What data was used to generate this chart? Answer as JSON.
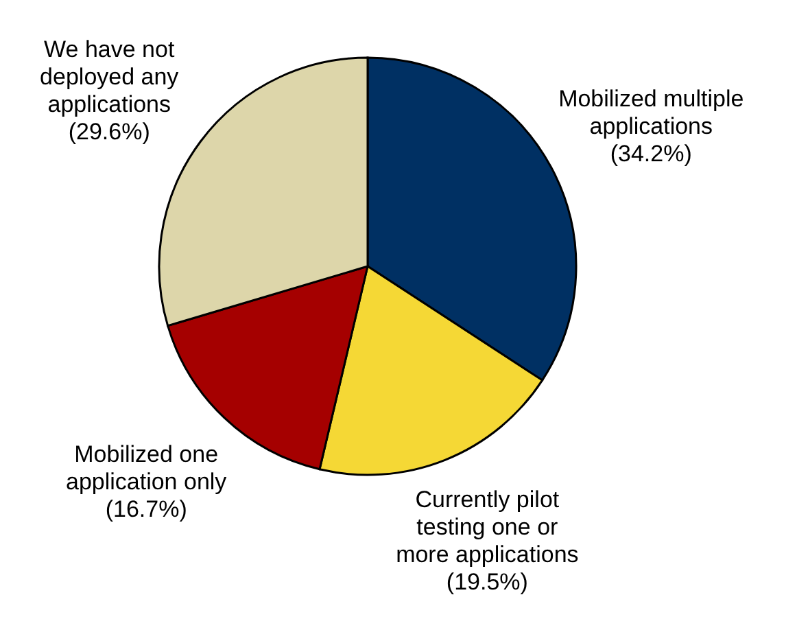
{
  "chart_data": {
    "type": "pie",
    "categories": [
      "Mobilized multiple applications",
      "Currently pilot testing one or more applications",
      "Mobilized one application only",
      "We have not deployed any applications"
    ],
    "values": [
      34.2,
      19.5,
      16.7,
      29.6
    ],
    "colors": [
      "#003063",
      "#f5d835",
      "#a50000",
      "#ddd6aa"
    ],
    "value_labels": [
      "(34.2%)",
      "(19.5%)",
      "(16.7%)",
      "(29.6%)"
    ],
    "legend": false
  }
}
